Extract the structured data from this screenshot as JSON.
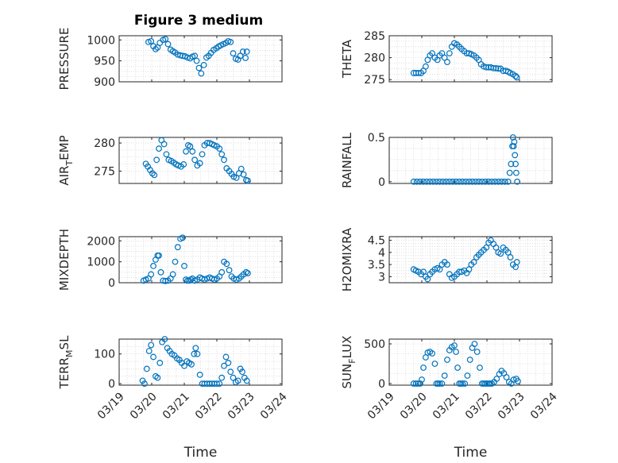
{
  "figure_title": "Figure 3 medium",
  "colors": {
    "marker": "#0072bd",
    "axis": "#262626",
    "grid": "#d8d8d8"
  },
  "chart_data": [
    {
      "type": "scatter",
      "title": "Figure 3 medium",
      "ylabel": "PRESSURE",
      "ylabel_parts": [
        "PRESSURE",
        "",
        ""
      ],
      "xlabel": "",
      "xlim": [
        0,
        5
      ],
      "ylim": [
        900,
        1010
      ],
      "yticks": [
        900,
        950,
        1000
      ],
      "ytick_labels": [
        "900",
        "950",
        "1000"
      ],
      "x": [
        0.9,
        0.98,
        1.05,
        1.12,
        1.18,
        1.25,
        1.35,
        1.42,
        1.5,
        1.58,
        1.65,
        1.72,
        1.8,
        1.88,
        1.95,
        2.02,
        2.1,
        2.18,
        2.25,
        2.32,
        2.38,
        2.45,
        2.52,
        2.6,
        2.68,
        2.75,
        2.82,
        2.9,
        2.98,
        3.05,
        3.12,
        3.2,
        3.28,
        3.35,
        3.42,
        3.5,
        3.58,
        3.65,
        3.72,
        3.8,
        3.88,
        3.92
      ],
      "y": [
        995,
        997,
        985,
        978,
        982,
        993,
        1000,
        1002,
        990,
        977,
        973,
        970,
        965,
        963,
        962,
        961,
        958,
        956,
        960,
        962,
        950,
        933,
        920,
        940,
        958,
        962,
        969,
        976,
        980,
        984,
        987,
        990,
        993,
        997,
        995,
        968,
        955,
        953,
        962,
        972,
        957,
        972
      ]
    },
    {
      "type": "scatter",
      "title": "",
      "ylabel": "THETA",
      "ylabel_parts": [
        "THETA",
        "",
        ""
      ],
      "xlabel": "",
      "xlim": [
        0,
        5
      ],
      "ylim": [
        274.5,
        285
      ],
      "yticks": [
        275,
        280,
        285
      ],
      "ytick_labels": [
        "275",
        "280",
        "285"
      ],
      "x": [
        0.75,
        0.82,
        0.9,
        0.98,
        1.05,
        1.12,
        1.18,
        1.25,
        1.32,
        1.4,
        1.48,
        1.55,
        1.62,
        1.7,
        1.78,
        1.85,
        1.92,
        2.0,
        2.08,
        2.15,
        2.22,
        2.3,
        2.38,
        2.45,
        2.52,
        2.6,
        2.68,
        2.75,
        2.82,
        2.9,
        2.98,
        3.05,
        3.12,
        3.2,
        3.28,
        3.35,
        3.42,
        3.5,
        3.58,
        3.65,
        3.72,
        3.8,
        3.88,
        3.92
      ],
      "y": [
        276.5,
        276.5,
        276.5,
        276.5,
        277,
        278,
        279.5,
        280.5,
        281,
        280,
        279.5,
        280.5,
        281,
        280,
        279,
        281,
        282.5,
        283.3,
        283,
        282.5,
        282,
        281.5,
        281,
        281,
        280.8,
        280.5,
        280,
        279.5,
        278.5,
        278,
        277.8,
        277.8,
        277.8,
        277.6,
        277.6,
        277.5,
        277.5,
        277,
        277,
        276.8,
        276.5,
        276.2,
        275.8,
        275.5
      ]
    },
    {
      "type": "scatter",
      "title": "",
      "ylabel": "AIR_T_EMP",
      "ylabel_parts": [
        "AIR",
        "T",
        "EMP"
      ],
      "xlabel": "",
      "xlim": [
        0,
        5
      ],
      "ylim": [
        272.8,
        281
      ],
      "yticks": [
        275,
        280
      ],
      "ytick_labels": [
        "275",
        "280"
      ],
      "x": [
        0.82,
        0.88,
        0.95,
        1.02,
        1.08,
        1.15,
        1.22,
        1.3,
        1.38,
        1.45,
        1.52,
        1.6,
        1.68,
        1.75,
        1.82,
        1.9,
        1.98,
        2.05,
        2.12,
        2.18,
        2.25,
        2.32,
        2.4,
        2.48,
        2.55,
        2.62,
        2.7,
        2.78,
        2.85,
        2.92,
        3.0,
        3.08,
        3.15,
        3.22,
        3.3,
        3.38,
        3.45,
        3.52,
        3.6,
        3.68,
        3.75,
        3.82,
        3.9,
        3.95
      ],
      "y": [
        276.3,
        275.8,
        275.2,
        274.6,
        274.3,
        277,
        279,
        280.5,
        279.8,
        278,
        277,
        276.8,
        276.5,
        276.2,
        276,
        275.8,
        276.2,
        278.5,
        279.6,
        279.4,
        278.5,
        277,
        276,
        276.4,
        278,
        279.6,
        280,
        280,
        279.8,
        279.6,
        279.4,
        279,
        278,
        277,
        275.5,
        275,
        274.5,
        274,
        273.8,
        274.6,
        275.4,
        274.4,
        273.4,
        273.3
      ]
    },
    {
      "type": "scatter",
      "title": "",
      "ylabel": "RAINFALL",
      "ylabel_parts": [
        "RAINFALL",
        "",
        ""
      ],
      "xlabel": "",
      "xlim": [
        0,
        5
      ],
      "ylim": [
        -0.02,
        0.5
      ],
      "yticks": [
        0,
        0.5
      ],
      "ytick_labels": [
        "0",
        "0.5"
      ],
      "x": [
        0.75,
        0.85,
        0.95,
        1.05,
        1.15,
        1.25,
        1.35,
        1.45,
        1.55,
        1.65,
        1.75,
        1.85,
        1.95,
        2.05,
        2.15,
        2.25,
        2.35,
        2.45,
        2.55,
        2.65,
        2.75,
        2.85,
        2.95,
        3.05,
        3.15,
        3.25,
        3.35,
        3.45,
        3.55,
        3.65,
        3.7,
        3.74,
        3.78,
        3.8,
        3.82,
        3.84,
        3.86,
        3.88,
        3.9,
        3.93
      ],
      "y": [
        0,
        0,
        0,
        0,
        0,
        0,
        0,
        0,
        0,
        0,
        0,
        0,
        0,
        0,
        0,
        0,
        0,
        0,
        0,
        0,
        0,
        0,
        0,
        0,
        0,
        0,
        0,
        0,
        0,
        0,
        0.1,
        0.2,
        0.4,
        0.5,
        0.4,
        0.45,
        0.3,
        0.2,
        0.1,
        0
      ]
    },
    {
      "type": "scatter",
      "title": "",
      "ylabel": "MIXDEPTH",
      "ylabel_parts": [
        "MIXDEPTH",
        "",
        ""
      ],
      "xlabel": "",
      "xlim": [
        0,
        5
      ],
      "ylim": [
        0,
        2200
      ],
      "yticks": [
        0,
        1000,
        2000
      ],
      "ytick_labels": [
        "0",
        "1000",
        "2000"
      ],
      "x": [
        0.75,
        0.82,
        0.9,
        0.98,
        1.05,
        1.12,
        1.18,
        1.22,
        1.28,
        1.35,
        1.42,
        1.5,
        1.58,
        1.65,
        1.72,
        1.8,
        1.88,
        1.95,
        2.0,
        2.05,
        2.1,
        2.15,
        2.2,
        2.25,
        2.32,
        2.4,
        2.48,
        2.55,
        2.62,
        2.7,
        2.78,
        2.85,
        2.92,
        3.0,
        3.08,
        3.15,
        3.22,
        3.3,
        3.38,
        3.45,
        3.52,
        3.6,
        3.68,
        3.75,
        3.82,
        3.9,
        3.95
      ],
      "y": [
        100,
        150,
        200,
        400,
        800,
        1100,
        1300,
        1300,
        500,
        100,
        80,
        100,
        200,
        400,
        1000,
        1700,
        2100,
        2150,
        800,
        150,
        100,
        100,
        150,
        200,
        100,
        150,
        250,
        200,
        150,
        200,
        250,
        200,
        150,
        200,
        300,
        500,
        1000,
        900,
        600,
        300,
        200,
        150,
        200,
        300,
        400,
        500,
        450
      ]
    },
    {
      "type": "scatter",
      "title": "",
      "ylabel": "H2OMIXRA",
      "ylabel_parts": [
        "H2OMIXRA",
        "",
        ""
      ],
      "xlabel": "",
      "xlim": [
        0,
        5
      ],
      "ylim": [
        2.75,
        4.65
      ],
      "yticks": [
        3,
        3.5,
        4,
        4.5
      ],
      "ytick_labels": [
        "3",
        "3.5",
        "4",
        "4.5"
      ],
      "x": [
        0.75,
        0.82,
        0.9,
        0.98,
        1.05,
        1.12,
        1.18,
        1.25,
        1.32,
        1.4,
        1.48,
        1.55,
        1.62,
        1.7,
        1.78,
        1.85,
        1.92,
        2.0,
        2.08,
        2.15,
        2.22,
        2.3,
        2.38,
        2.45,
        2.52,
        2.6,
        2.68,
        2.75,
        2.82,
        2.9,
        2.98,
        3.05,
        3.12,
        3.2,
        3.28,
        3.35,
        3.42,
        3.5,
        3.58,
        3.65,
        3.72,
        3.8,
        3.88,
        3.92
      ],
      "y": [
        3.3,
        3.25,
        3.2,
        3.1,
        3.2,
        3.0,
        2.9,
        3.1,
        3.2,
        3.3,
        3.35,
        3.3,
        3.5,
        3.6,
        3.5,
        3.1,
        2.95,
        3.0,
        3.1,
        3.2,
        3.2,
        3.25,
        3.15,
        3.3,
        3.5,
        3.6,
        3.8,
        3.9,
        4.0,
        4.1,
        4.2,
        4.4,
        4.5,
        4.35,
        4.2,
        4.0,
        3.95,
        4.2,
        4.1,
        4.0,
        3.8,
        3.5,
        3.4,
        3.6
      ]
    },
    {
      "type": "scatter",
      "title": "",
      "ylabel": "TERR_M_SL",
      "ylabel_parts": [
        "TERR",
        "M",
        "SL"
      ],
      "xlabel": "Time",
      "xlim": [
        0,
        5
      ],
      "ylim": [
        -5,
        150
      ],
      "yticks": [
        0,
        100
      ],
      "ytick_labels": [
        "0",
        "100"
      ],
      "xticks": [
        0,
        1,
        2,
        3,
        4,
        5
      ],
      "xtick_labels": [
        "03/19",
        "03/20",
        "03/21",
        "03/22",
        "03/23",
        "03/24"
      ],
      "x": [
        0.72,
        0.78,
        0.85,
        0.92,
        0.98,
        1.05,
        1.12,
        1.18,
        1.25,
        1.32,
        1.4,
        1.48,
        1.55,
        1.62,
        1.7,
        1.78,
        1.85,
        1.92,
        2.0,
        2.08,
        2.15,
        2.22,
        2.3,
        2.35,
        2.4,
        2.48,
        2.55,
        2.62,
        2.7,
        2.78,
        2.85,
        2.92,
        3.0,
        3.08,
        3.15,
        3.22,
        3.28,
        3.35,
        3.42,
        3.5,
        3.58,
        3.65,
        3.72,
        3.78,
        3.85,
        3.92
      ],
      "y": [
        10,
        0,
        50,
        110,
        130,
        90,
        25,
        20,
        70,
        140,
        150,
        120,
        110,
        100,
        95,
        85,
        80,
        70,
        60,
        75,
        70,
        65,
        100,
        120,
        100,
        30,
        0,
        0,
        0,
        0,
        0,
        0,
        0,
        0,
        20,
        60,
        90,
        70,
        40,
        20,
        5,
        10,
        50,
        40,
        20,
        10
      ]
    },
    {
      "type": "scatter",
      "title": "",
      "ylabel": "SUN_F_LUX",
      "ylabel_parts": [
        "SUN",
        "F",
        "LUX"
      ],
      "xlabel": "Time",
      "xlim": [
        0,
        5
      ],
      "ylim": [
        -20,
        560
      ],
      "yticks": [
        0,
        500
      ],
      "ytick_labels": [
        "0",
        "500"
      ],
      "xticks": [
        0,
        1,
        2,
        3,
        4,
        5
      ],
      "xtick_labels": [
        "03/19",
        "03/20",
        "03/21",
        "03/22",
        "03/23",
        "03/24"
      ],
      "x": [
        0.75,
        0.82,
        0.88,
        0.95,
        1.0,
        1.05,
        1.12,
        1.18,
        1.25,
        1.32,
        1.4,
        1.45,
        1.5,
        1.55,
        1.62,
        1.7,
        1.78,
        1.85,
        1.92,
        2.0,
        2.05,
        2.1,
        2.15,
        2.2,
        2.25,
        2.32,
        2.4,
        2.48,
        2.55,
        2.62,
        2.7,
        2.78,
        2.85,
        2.9,
        2.95,
        3.0,
        3.05,
        3.1,
        3.15,
        3.22,
        3.3,
        3.38,
        3.45,
        3.52,
        3.6,
        3.68,
        3.75,
        3.82,
        3.9,
        3.95
      ],
      "y": [
        0,
        0,
        0,
        0,
        50,
        200,
        330,
        390,
        400,
        380,
        250,
        0,
        0,
        0,
        0,
        100,
        300,
        420,
        460,
        480,
        400,
        200,
        0,
        0,
        0,
        0,
        100,
        300,
        450,
        500,
        400,
        200,
        0,
        0,
        0,
        0,
        0,
        0,
        0,
        20,
        60,
        120,
        160,
        130,
        80,
        20,
        0,
        50,
        60,
        30
      ]
    }
  ]
}
